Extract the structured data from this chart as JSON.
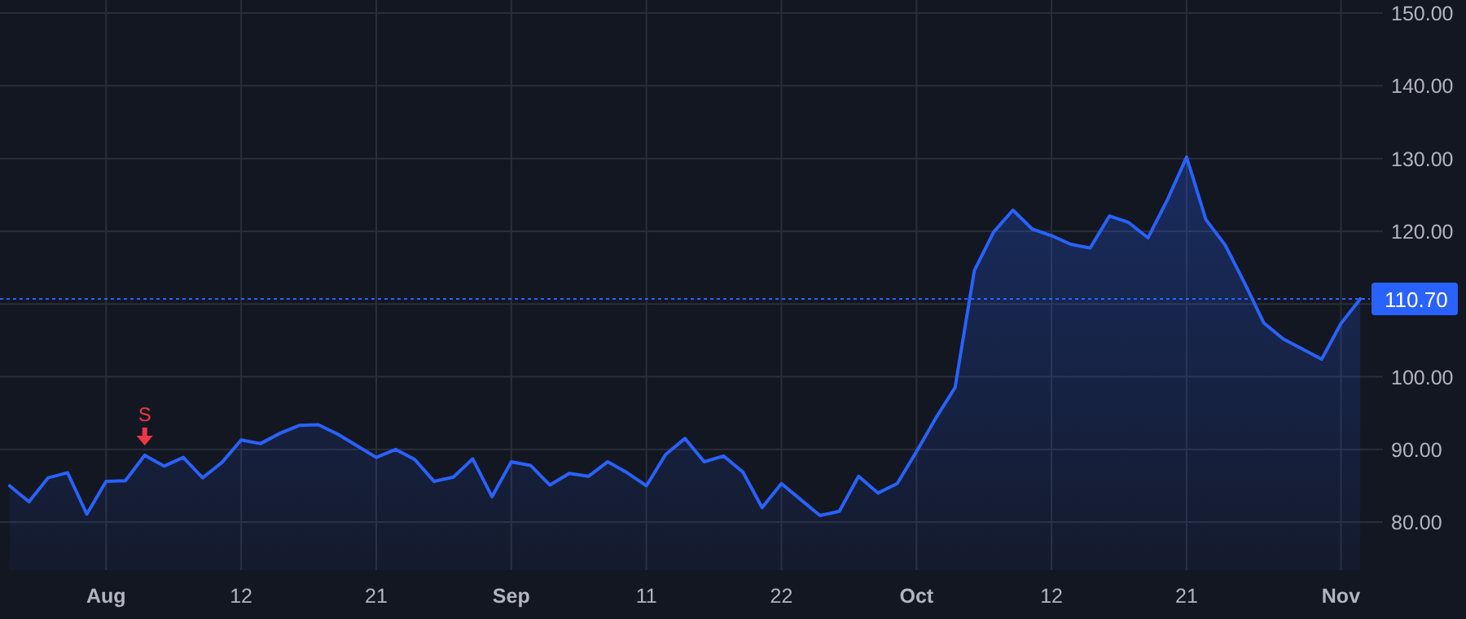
{
  "chart_data": {
    "type": "area",
    "categories": [
      null,
      null,
      null,
      null,
      null,
      "Aug",
      null,
      null,
      null,
      null,
      null,
      null,
      "12",
      null,
      null,
      null,
      null,
      null,
      null,
      "21",
      null,
      null,
      null,
      null,
      null,
      null,
      "Sep",
      null,
      null,
      null,
      null,
      null,
      null,
      "11",
      null,
      null,
      null,
      null,
      null,
      null,
      "22",
      null,
      null,
      null,
      null,
      null,
      null,
      "Oct",
      null,
      null,
      null,
      null,
      null,
      null,
      "12",
      null,
      null,
      null,
      null,
      null,
      null,
      "21",
      null,
      null,
      null,
      null,
      null,
      null,
      null,
      "Nov",
      null
    ],
    "series": [
      {
        "color": "#2962ff",
        "values": [
          85.0,
          82.8,
          86.1,
          86.8,
          81.1,
          85.6,
          85.7,
          89.2,
          87.7,
          88.9,
          86.1,
          88.2,
          91.3,
          90.8,
          92.2,
          93.3,
          93.4,
          92.1,
          90.5,
          88.9,
          90.0,
          88.6,
          85.6,
          86.2,
          88.7,
          83.5,
          88.3,
          87.8,
          85.1,
          86.7,
          86.3,
          88.3,
          86.8,
          85.0,
          89.3,
          91.5,
          88.3,
          89.1,
          86.9,
          82.0,
          85.3,
          83.1,
          80.9,
          81.5,
          86.3,
          84.0,
          85.3,
          89.7,
          94.3,
          98.5,
          114.6,
          119.9,
          122.9,
          120.3,
          119.4,
          118.2,
          117.7,
          122.1,
          121.2,
          119.1,
          124.3,
          130.2,
          121.6,
          118.1,
          112.9,
          107.4,
          105.2,
          103.8,
          102.4,
          107.3,
          110.7
        ]
      }
    ],
    "ylim": [
      73.4,
      151.8
    ],
    "yticks": [
      {
        "value": 80,
        "label": "80.00"
      },
      {
        "value": 90,
        "label": "90.00"
      },
      {
        "value": 100,
        "label": "100.00"
      },
      {
        "value": 110,
        "label": null
      },
      {
        "value": 120,
        "label": "120.00"
      },
      {
        "value": 130,
        "label": "130.00"
      },
      {
        "value": 140,
        "label": "140.00"
      },
      {
        "value": 150,
        "label": "150.00"
      }
    ],
    "grid": true,
    "line_style": "solid",
    "ref_lines": [
      {
        "axis": "y",
        "value": 110.7,
        "label": "110.70",
        "color": "#2962ff",
        "line_style": "dotted"
      }
    ],
    "annotations": [
      {
        "text": "S",
        "y": 89.2
      }
    ]
  }
}
